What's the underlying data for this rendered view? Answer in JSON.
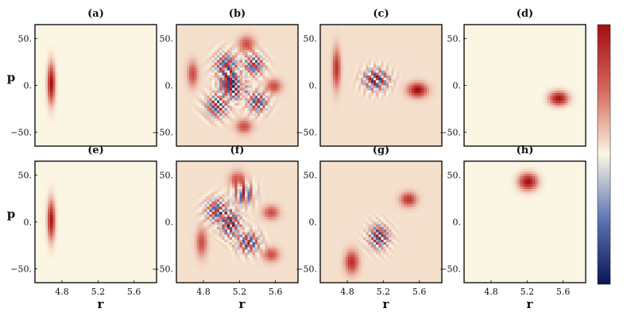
{
  "chart_data": {
    "type": "heatmap",
    "description_note": "",
    "panels": [
      {
        "label": "(a)",
        "blobs": [
          {
            "r": 4.68,
            "p": 2,
            "sr": 0.028,
            "sp": 14,
            "amp": 1.0
          }
        ],
        "fringes": []
      },
      {
        "label": "(b)",
        "blobs": [
          {
            "r": 4.68,
            "p": 12,
            "sr": 0.04,
            "sp": 9,
            "amp": 0.55
          },
          {
            "r": 5.28,
            "p": 44,
            "sr": 0.06,
            "sp": 6,
            "amp": 0.55
          },
          {
            "r": 5.58,
            "p": -1,
            "sr": 0.06,
            "sp": 5,
            "amp": 0.55
          },
          {
            "r": 5.25,
            "p": -44,
            "sr": 0.06,
            "sp": 5,
            "amp": 0.55
          }
        ],
        "fringes": [
          {
            "r": 5.05,
            "p": 22,
            "sr": 0.09,
            "sp": 9,
            "ang": -0.8,
            "freq": 0.45,
            "amp": 0.9
          },
          {
            "r": 4.95,
            "p": -22,
            "sr": 0.09,
            "sp": 9,
            "ang": 0.8,
            "freq": 0.45,
            "amp": 0.9
          },
          {
            "r": 5.36,
            "p": 22,
            "sr": 0.08,
            "sp": 8,
            "ang": 0.7,
            "freq": 0.45,
            "amp": 0.9
          },
          {
            "r": 5.4,
            "p": -18,
            "sr": 0.08,
            "sp": 8,
            "ang": -0.6,
            "freq": 0.45,
            "amp": 0.9
          },
          {
            "r": 5.1,
            "p": 2,
            "sr": 0.08,
            "sp": 10,
            "ang": 0.0,
            "freq": 0.7,
            "amp": 1.0
          },
          {
            "r": 5.2,
            "p": -5,
            "sr": 0.06,
            "sp": 8,
            "ang": 1.4,
            "freq": 0.7,
            "amp": 0.8
          }
        ]
      },
      {
        "label": "(c)",
        "blobs": [
          {
            "r": 4.68,
            "p": 18,
            "sr": 0.03,
            "sp": 14,
            "amp": 0.7
          },
          {
            "r": 5.58,
            "p": -5,
            "sr": 0.07,
            "sp": 5,
            "amp": 0.95
          }
        ],
        "fringes": [
          {
            "r": 5.12,
            "p": 6,
            "sr": 0.1,
            "sp": 8,
            "ang": -0.35,
            "freq": 0.55,
            "amp": 1.0
          }
        ]
      },
      {
        "label": "(d)",
        "blobs": [
          {
            "r": 5.55,
            "p": -14,
            "sr": 0.07,
            "sp": 5,
            "amp": 1.0
          }
        ],
        "fringes": []
      },
      {
        "label": "(e)",
        "blobs": [
          {
            "r": 4.68,
            "p": 2,
            "sr": 0.028,
            "sp": 14,
            "amp": 0.95
          }
        ],
        "fringes": []
      },
      {
        "label": "(f)",
        "blobs": [
          {
            "r": 5.18,
            "p": 45,
            "sr": 0.06,
            "sp": 6,
            "amp": 0.55
          },
          {
            "r": 4.78,
            "p": -22,
            "sr": 0.04,
            "sp": 10,
            "amp": 0.55
          },
          {
            "r": 5.55,
            "p": -35,
            "sr": 0.06,
            "sp": 5,
            "amp": 0.55
          },
          {
            "r": 5.55,
            "p": 10,
            "sr": 0.06,
            "sp": 5,
            "amp": 0.55
          }
        ],
        "fringes": [
          {
            "r": 4.95,
            "p": 12,
            "sr": 0.09,
            "sp": 9,
            "ang": -0.9,
            "freq": 0.45,
            "amp": 0.9
          },
          {
            "r": 5.25,
            "p": 30,
            "sr": 0.08,
            "sp": 8,
            "ang": 0.1,
            "freq": 0.45,
            "amp": 0.9
          },
          {
            "r": 5.3,
            "p": -22,
            "sr": 0.09,
            "sp": 8,
            "ang": 0.4,
            "freq": 0.45,
            "amp": 0.9
          },
          {
            "r": 5.1,
            "p": -2,
            "sr": 0.08,
            "sp": 10,
            "ang": 0.9,
            "freq": 0.65,
            "amp": 1.0
          }
        ]
      },
      {
        "label": "(g)",
        "blobs": [
          {
            "r": 5.48,
            "p": 24,
            "sr": 0.06,
            "sp": 5,
            "amp": 0.7
          },
          {
            "r": 4.85,
            "p": -43,
            "sr": 0.05,
            "sp": 8,
            "amp": 0.75
          }
        ],
        "fringes": [
          {
            "r": 5.15,
            "p": -16,
            "sr": 0.08,
            "sp": 9,
            "ang": 0.75,
            "freq": 0.6,
            "amp": 1.0
          }
        ]
      },
      {
        "label": "(h)",
        "blobs": [
          {
            "r": 5.21,
            "p": 43,
            "sr": 0.07,
            "sp": 6,
            "amp": 1.0
          }
        ],
        "fringes": []
      }
    ],
    "xlabel": "r",
    "ylabel": "p",
    "xticks": [
      "4.8",
      "5.2",
      "5.6"
    ],
    "xtick_values": [
      4.8,
      5.2,
      5.6
    ],
    "yticks": [
      "50.",
      "0.",
      "−50."
    ],
    "ytick_values": [
      50,
      0,
      -50
    ],
    "xlim": [
      4.5,
      5.85
    ],
    "ylim": [
      -65,
      65
    ],
    "colormap": {
      "low": "#0b1457",
      "mid": "#fbf6e3",
      "high": "#a40e12"
    },
    "colorbar": true,
    "ytick_side": {
      "row1": [
        "left",
        "right",
        "right",
        "left"
      ],
      "row2": [
        "left",
        "right",
        "right",
        "right"
      ]
    }
  }
}
